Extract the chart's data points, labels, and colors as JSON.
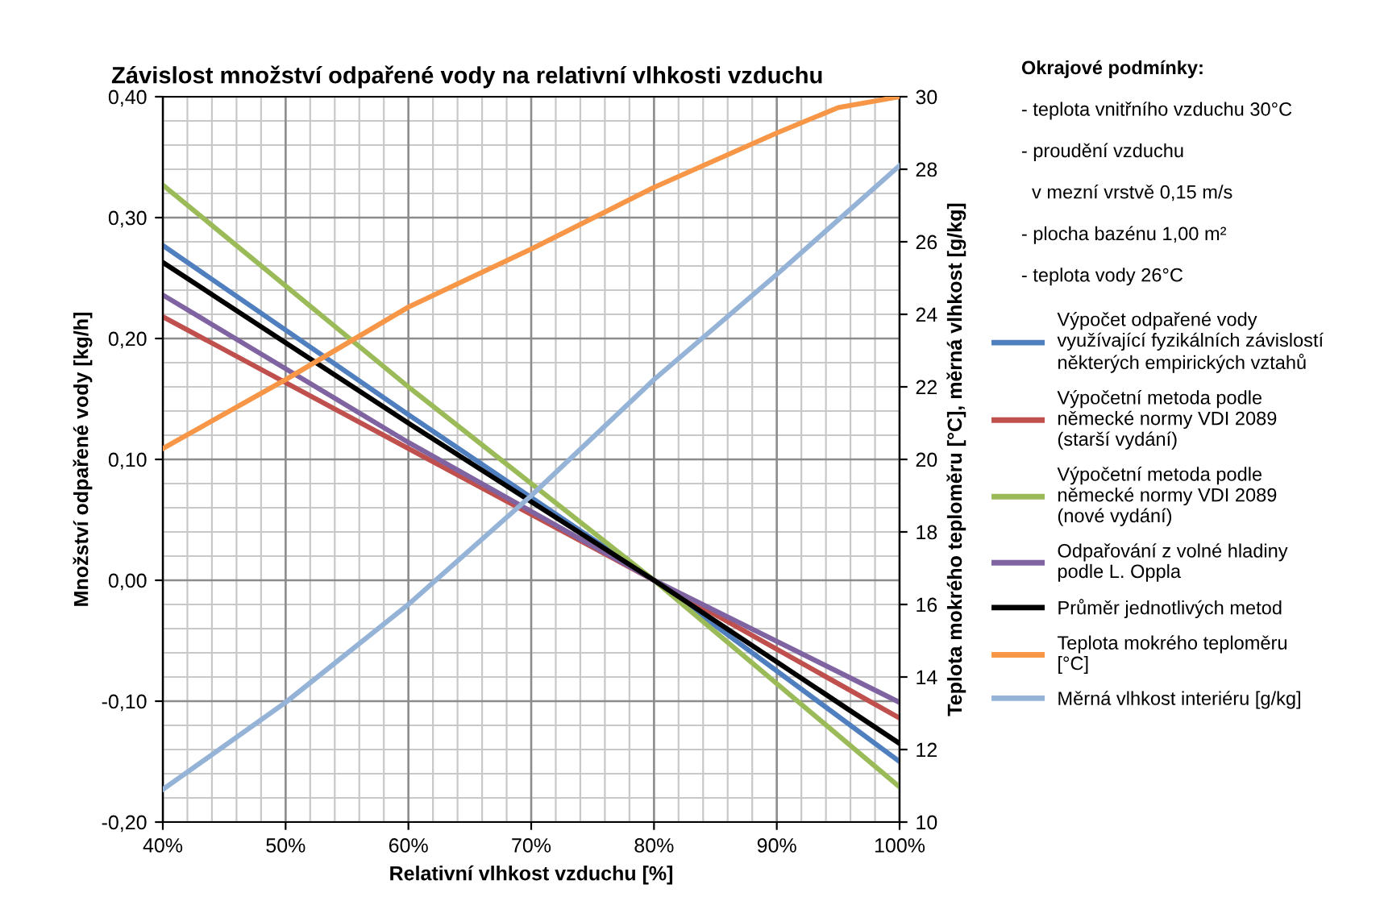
{
  "chart_data": {
    "type": "line",
    "title": "Závislost množství odpařené vody na relativní vlhkosti vzduchu",
    "xlabel": "Relativní vlhkost vzduchu [%]",
    "ylabel": "Množství odpařené vody [kg/h]",
    "y2label": "Teplota mokrého teploměru [°C], měrná vlhkost [g/kg]",
    "annotations": [
      "Okrajové podmínky:",
      "- teplota vnitřního vzduchu 30°C",
      "- proudění vzduchu",
      "  v mezní vrstvě 0,15 m/s",
      "- plocha bazénu 1,00 m²",
      "- teplota vody 26°C"
    ],
    "xlim": [
      40,
      100
    ],
    "xticks": [
      {
        "value": 40,
        "label": "40%"
      },
      {
        "value": 50,
        "label": "50%"
      },
      {
        "value": 60,
        "label": "60%"
      },
      {
        "value": 70,
        "label": "70%"
      },
      {
        "value": 80,
        "label": "80%"
      },
      {
        "value": 90,
        "label": "90%"
      },
      {
        "value": 100,
        "label": "100%"
      }
    ],
    "ylim": [
      -0.2,
      0.4
    ],
    "yticks": [
      {
        "value": -0.2,
        "label": "-0,20"
      },
      {
        "value": -0.1,
        "label": "-0,10"
      },
      {
        "value": 0,
        "label": "0,00"
      },
      {
        "value": 0.1,
        "label": "0,10"
      },
      {
        "value": 0.2,
        "label": "0,20"
      },
      {
        "value": 0.3,
        "label": "0,30"
      },
      {
        "value": 0.4,
        "label": "0,40"
      }
    ],
    "y2lim": [
      10,
      30
    ],
    "y2ticks": [
      10,
      12,
      14,
      16,
      18,
      20,
      22,
      24,
      26,
      28,
      30
    ],
    "grid": true,
    "legend": "right",
    "x": [
      40,
      60,
      80,
      100
    ],
    "series": [
      {
        "name": "Výpočet odpařené vody\nvyužívající fyzikálních závislostí\nněkterých empirických vztahů",
        "color": "#4f7fbf",
        "values": [
          0.277,
          0.137,
          0.0,
          -0.15
        ]
      },
      {
        "name": "Výpočetní metoda podle\nněmecké normy VDI 2089\n(starší vydání)",
        "color": "#c0504d",
        "values": [
          0.218,
          0.109,
          0.0,
          -0.114
        ]
      },
      {
        "name": "Výpočetní metoda podle\nněmecké normy VDI 2089\n(nové vydání)",
        "color": "#9bbb59",
        "values": [
          0.327,
          0.16,
          0.0,
          -0.171
        ]
      },
      {
        "name": "Odpařování z volné hladiny\npodle L. Oppla",
        "color": "#8064a2",
        "values": [
          0.236,
          0.114,
          0.0,
          -0.101
        ]
      },
      {
        "name": "Průměr jednotlivých metod",
        "color": "#000000",
        "values": [
          0.263,
          0.13,
          0.0,
          -0.135
        ]
      },
      {
        "name": "Teplota mokrého teploměru\n[°C]",
        "color": "#f79646",
        "axis": "y2",
        "x": [
          40,
          50,
          60,
          70,
          80,
          90,
          95,
          100
        ],
        "values": [
          20.3,
          22.2,
          24.2,
          25.8,
          27.5,
          29.0,
          29.7,
          30.0
        ]
      },
      {
        "name": "Měrná vlhkost interiéru [g/kg]",
        "color": "#95b3d7",
        "axis": "y2",
        "x": [
          40,
          50,
          60,
          70,
          80,
          90,
          100
        ],
        "values": [
          10.9,
          13.3,
          16.0,
          19.0,
          22.2,
          25.1,
          28.1
        ]
      }
    ]
  }
}
